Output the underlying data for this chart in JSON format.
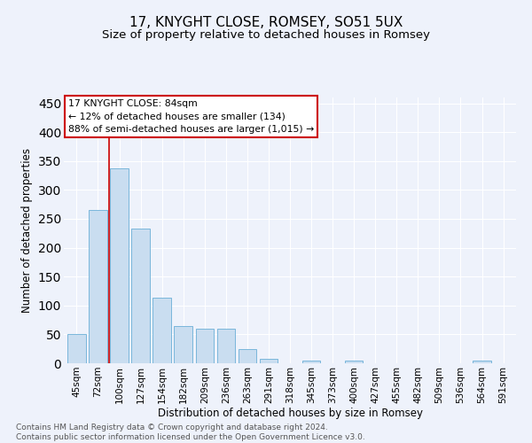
{
  "title": "17, KNYGHT CLOSE, ROMSEY, SO51 5UX",
  "subtitle": "Size of property relative to detached houses in Romsey",
  "xlabel": "Distribution of detached houses by size in Romsey",
  "ylabel": "Number of detached properties",
  "categories": [
    "45sqm",
    "72sqm",
    "100sqm",
    "127sqm",
    "154sqm",
    "182sqm",
    "209sqm",
    "236sqm",
    "263sqm",
    "291sqm",
    "318sqm",
    "345sqm",
    "373sqm",
    "400sqm",
    "427sqm",
    "455sqm",
    "482sqm",
    "509sqm",
    "536sqm",
    "564sqm",
    "591sqm"
  ],
  "values": [
    50,
    265,
    338,
    233,
    113,
    65,
    60,
    60,
    25,
    8,
    0,
    5,
    0,
    4,
    0,
    0,
    0,
    0,
    0,
    5,
    0
  ],
  "bar_color": "#c9ddf0",
  "bar_edge_color": "#6aaed6",
  "vline_x": 1.5,
  "annotation_line1": "17 KNYGHT CLOSE: 84sqm",
  "annotation_line2": "← 12% of detached houses are smaller (134)",
  "annotation_line3": "88% of semi-detached houses are larger (1,015) →",
  "annotation_box_facecolor": "#ffffff",
  "annotation_box_edgecolor": "#cc0000",
  "vline_color": "#cc0000",
  "background_color": "#eef2fb",
  "grid_color": "#ffffff",
  "footer_text": "Contains HM Land Registry data © Crown copyright and database right 2024.\nContains public sector information licensed under the Open Government Licence v3.0.",
  "ylim": [
    0,
    460
  ],
  "title_fontsize": 11,
  "subtitle_fontsize": 9.5,
  "ylabel_fontsize": 8.5,
  "xlabel_fontsize": 8.5,
  "tick_fontsize": 7.5,
  "annotation_fontsize": 7.8,
  "footer_fontsize": 6.5
}
